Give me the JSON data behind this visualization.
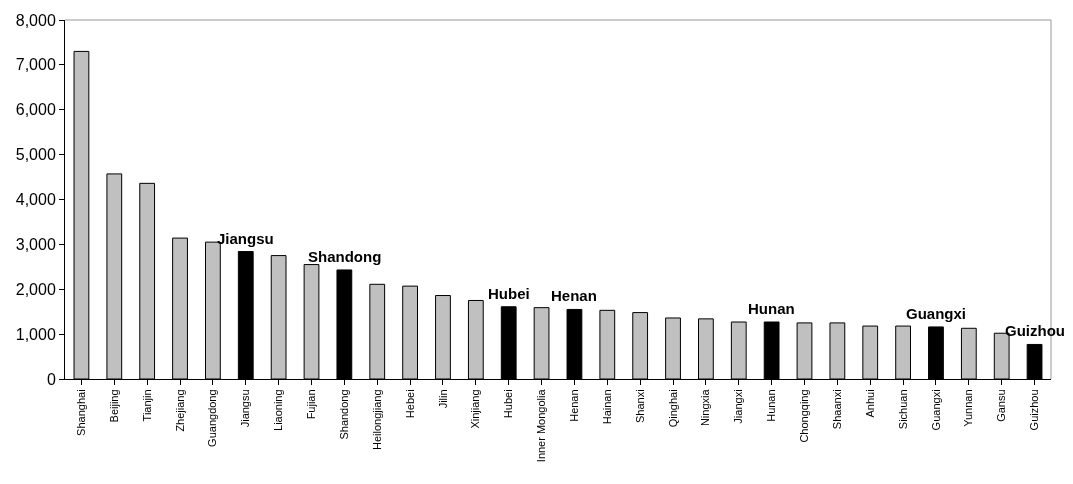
{
  "chart_data": {
    "type": "bar",
    "categories": [
      "Shanghai",
      "Beijing",
      "Tianjin",
      "Zhejiang",
      "Guangdong",
      "Jiangsu",
      "Liaoning",
      "Fujian",
      "Shandong",
      "Heilongjiang",
      "Hebei",
      "Jilin",
      "Xinjiang",
      "Hubei",
      "Inner Mongolia",
      "Henan",
      "Hainan",
      "Shanxi",
      "Qinghai",
      "Ningxia",
      "Jiangxi",
      "Hunan",
      "Chongqing",
      "Shaanxi",
      "Anhui",
      "Sichuan",
      "Guangxi",
      "Yunnan",
      "Gansu",
      "Guizhou"
    ],
    "values": [
      7300,
      4570,
      4360,
      3140,
      3050,
      2840,
      2750,
      2550,
      2430,
      2110,
      2070,
      1860,
      1750,
      1610,
      1590,
      1550,
      1530,
      1480,
      1360,
      1340,
      1270,
      1270,
      1250,
      1250,
      1180,
      1180,
      1160,
      1130,
      1020,
      770
    ],
    "colors": [
      "#c0c0c0",
      "#c0c0c0",
      "#c0c0c0",
      "#c0c0c0",
      "#c0c0c0",
      "#000000",
      "#c0c0c0",
      "#c0c0c0",
      "#000000",
      "#c0c0c0",
      "#c0c0c0",
      "#c0c0c0",
      "#c0c0c0",
      "#000000",
      "#c0c0c0",
      "#000000",
      "#c0c0c0",
      "#c0c0c0",
      "#c0c0c0",
      "#c0c0c0",
      "#c0c0c0",
      "#000000",
      "#c0c0c0",
      "#c0c0c0",
      "#c0c0c0",
      "#c0c0c0",
      "#000000",
      "#c0c0c0",
      "#c0c0c0",
      "#000000"
    ],
    "ylim": [
      0,
      8000
    ],
    "yticks": [
      {
        "value": 0,
        "label": "0"
      },
      {
        "value": 1000,
        "label": "1,000"
      },
      {
        "value": 2000,
        "label": "2,000"
      },
      {
        "value": 3000,
        "label": "3,000"
      },
      {
        "value": 4000,
        "label": "4,000"
      },
      {
        "value": 5000,
        "label": "5,000"
      },
      {
        "value": 6000,
        "label": "6,000"
      },
      {
        "value": 7000,
        "label": "7,000"
      },
      {
        "value": 8000,
        "label": "8,000"
      }
    ],
    "annotations": [
      {
        "text": "Jiangsu",
        "x": "Jiangsu",
        "y": 2840
      },
      {
        "text": "Shandong",
        "x": "Shandong",
        "y": 2430
      },
      {
        "text": "Hubei",
        "x": "Hubei",
        "y": 1610
      },
      {
        "text": "Henan",
        "x": "Henan",
        "y": 1550
      },
      {
        "text": "Hunan",
        "x": "Hunan",
        "y": 1270
      },
      {
        "text": "Guangxi",
        "x": "Guangxi",
        "y": 1160
      },
      {
        "text": "Guizhou",
        "x": "Guizhou",
        "y": 770
      }
    ]
  }
}
